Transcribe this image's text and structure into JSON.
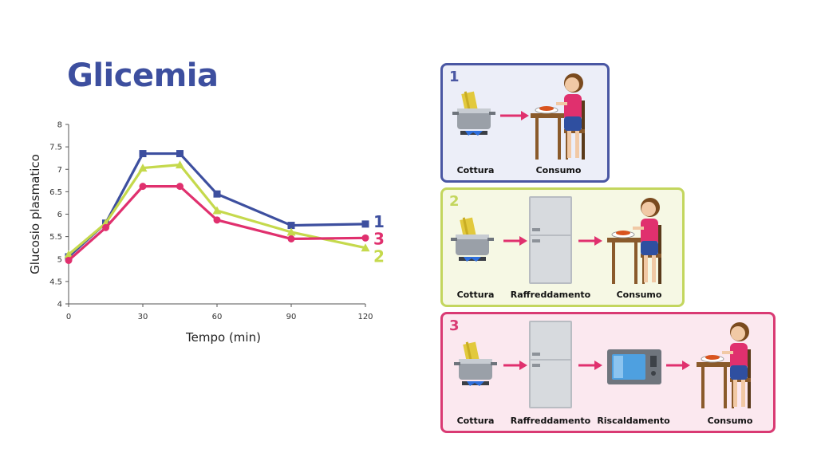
{
  "title": "Glicemia",
  "chart_data": {
    "type": "line",
    "xlabel": "Tempo (min)",
    "ylabel": "Glucosio plasmatico",
    "x": [
      0,
      15,
      30,
      45,
      60,
      90,
      120
    ],
    "xticks": [
      "0",
      "30",
      "60",
      "90",
      "120"
    ],
    "yticks": [
      "4",
      "4.5",
      "5",
      "5.5",
      "6",
      "6.5",
      "7",
      "7.5",
      "8"
    ],
    "xlim": [
      0,
      120
    ],
    "ylim": [
      4,
      8
    ],
    "series": [
      {
        "name": "1",
        "color": "#3d4f9f",
        "marker": "square",
        "values": [
          5.05,
          5.8,
          7.35,
          7.35,
          6.45,
          5.75,
          5.78
        ]
      },
      {
        "name": "2",
        "color": "#c5d94c",
        "marker": "triangle",
        "values": [
          5.1,
          5.8,
          7.03,
          7.1,
          6.08,
          5.6,
          5.25
        ]
      },
      {
        "name": "3",
        "color": "#e0306e",
        "marker": "circle",
        "values": [
          4.97,
          5.7,
          6.62,
          6.62,
          5.87,
          5.45,
          5.47
        ]
      }
    ]
  },
  "panels": [
    {
      "number": "1",
      "color": "#4a57a3",
      "steps": [
        "Cottura",
        "Consumo"
      ]
    },
    {
      "number": "2",
      "color": "#c3d65e",
      "steps": [
        "Cottura",
        "Raffreddamento",
        "Consumo"
      ]
    },
    {
      "number": "3",
      "color": "#d93a73",
      "steps": [
        "Cottura",
        "Raffreddamento",
        "Riscaldamento",
        "Consumo"
      ]
    }
  ]
}
